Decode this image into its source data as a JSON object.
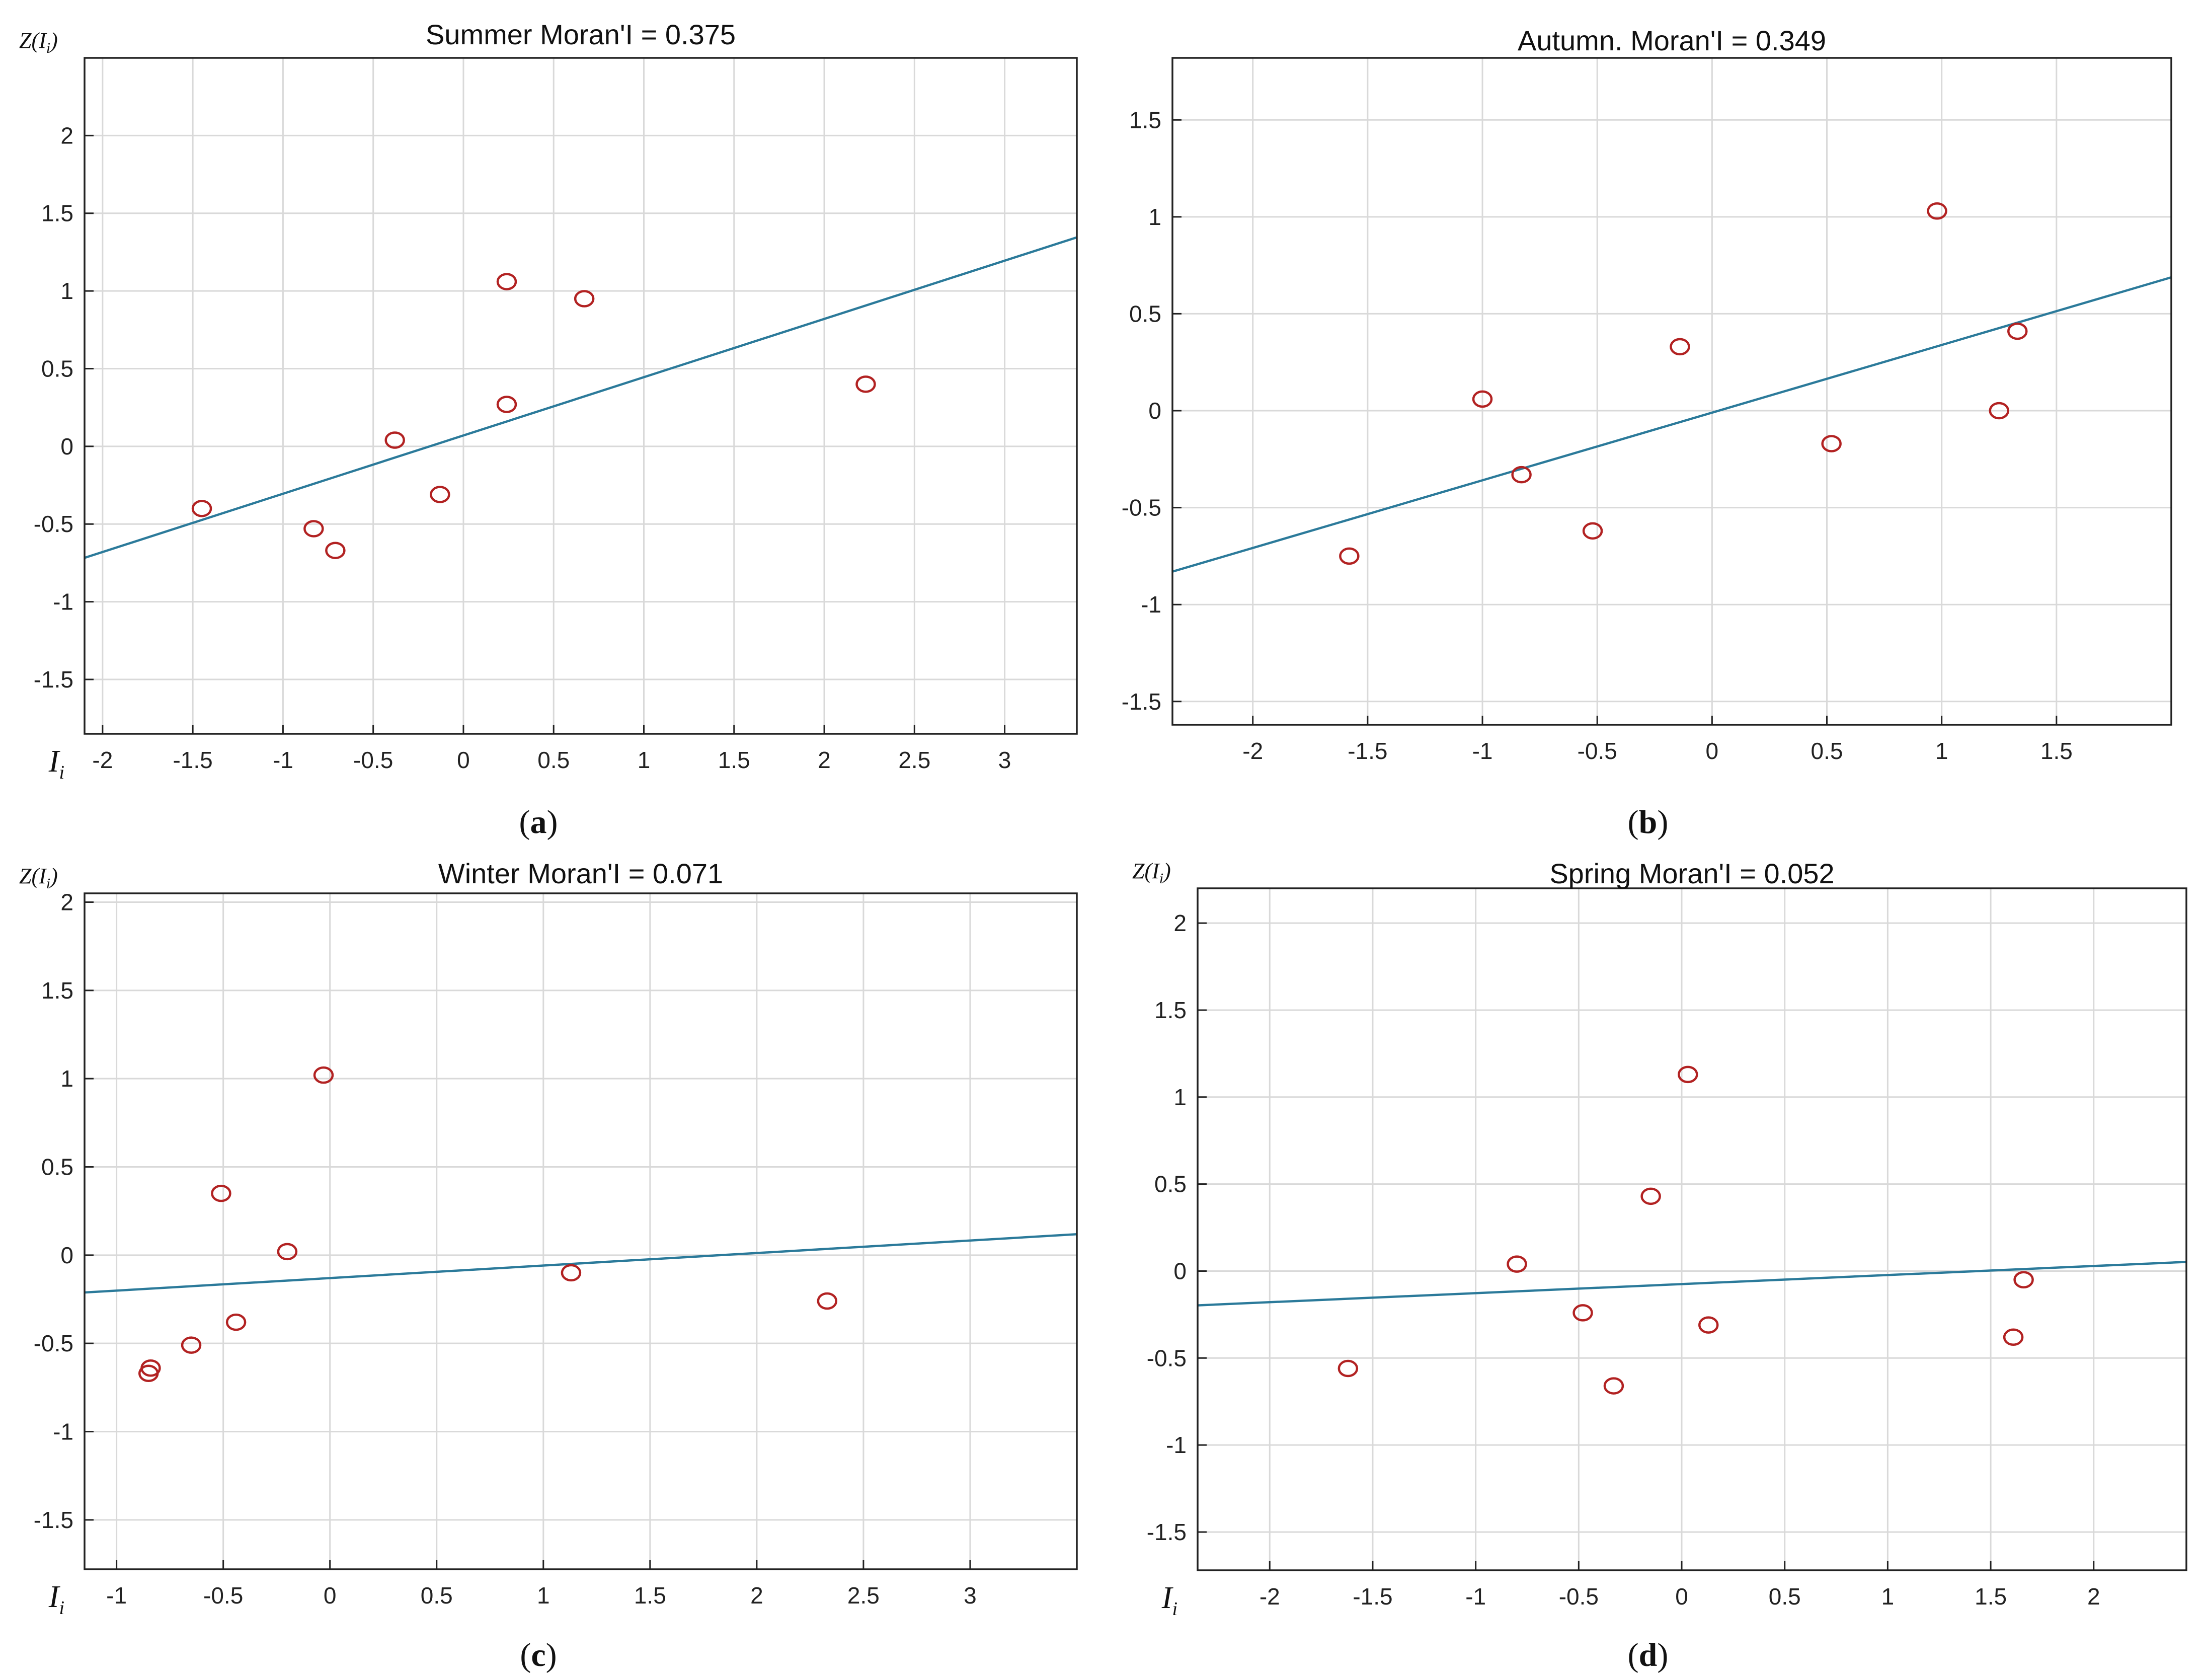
{
  "colors": {
    "line": "#2b7a9a",
    "marker": "#b22222",
    "grid": "#d9d9d9",
    "frame": "#222222"
  },
  "chart_data": [
    {
      "type": "scatter",
      "panel_label": "a",
      "title": "Summer Moran'I = 0.375",
      "ylabel": "Z(I",
      "ylabel_sub": "i",
      "xlabel": "I",
      "xlabel_sub": "i",
      "xlim": [
        -2.1,
        3.4
      ],
      "ylim": [
        -1.85,
        2.5
      ],
      "xticks": [
        -2,
        -1.5,
        -1,
        -0.5,
        0,
        0.5,
        1,
        1.5,
        2,
        2.5,
        3
      ],
      "yticks": [
        -1.5,
        -1,
        -0.5,
        0,
        0.5,
        1,
        1.5,
        2
      ],
      "grid": true,
      "points": [
        {
          "x": -1.45,
          "y": -0.4
        },
        {
          "x": -0.83,
          "y": -0.53
        },
        {
          "x": -0.71,
          "y": -0.67
        },
        {
          "x": -0.38,
          "y": 0.04
        },
        {
          "x": -0.13,
          "y": -0.31
        },
        {
          "x": 0.24,
          "y": 1.06
        },
        {
          "x": 0.24,
          "y": 0.27
        },
        {
          "x": 0.67,
          "y": 0.95
        },
        {
          "x": 2.23,
          "y": 0.4
        }
      ],
      "fit_line": {
        "slope": 0.375,
        "intercept": 0.07
      }
    },
    {
      "type": "scatter",
      "panel_label": "b",
      "title": "Autumn. Moran'I = 0.349",
      "ylabel": "",
      "ylabel_sub": "",
      "xlabel": "",
      "xlabel_sub": "",
      "xlim": [
        -2.35,
        2.0
      ],
      "ylim": [
        -1.62,
        1.82
      ],
      "xticks": [
        -2,
        -1.5,
        -1,
        -0.5,
        0,
        0.5,
        1,
        1.5
      ],
      "yticks": [
        -1.5,
        -1,
        -0.5,
        0,
        0.5,
        1,
        1.5
      ],
      "grid": true,
      "points": [
        {
          "x": -1.58,
          "y": -0.75
        },
        {
          "x": -1.0,
          "y": 0.06
        },
        {
          "x": -0.83,
          "y": -0.33
        },
        {
          "x": -0.52,
          "y": -0.62
        },
        {
          "x": -0.14,
          "y": 0.33
        },
        {
          "x": 0.52,
          "y": -0.17
        },
        {
          "x": 0.98,
          "y": 1.03
        },
        {
          "x": 1.25,
          "y": 0.0
        },
        {
          "x": 1.33,
          "y": 0.41
        }
      ],
      "fit_line": {
        "slope": 0.349,
        "intercept": -0.01
      }
    },
    {
      "type": "scatter",
      "panel_label": "c",
      "title": "Winter Moran'I = 0.071",
      "ylabel": "Z(I",
      "ylabel_sub": "i",
      "xlabel": "I",
      "xlabel_sub": "i",
      "xlim": [
        -1.15,
        3.5
      ],
      "ylim": [
        -1.78,
        2.05
      ],
      "xticks": [
        -1,
        -0.5,
        0,
        0.5,
        1,
        1.5,
        2,
        2.5,
        3
      ],
      "yticks": [
        -1.5,
        -1,
        -0.5,
        0,
        0.5,
        1,
        1.5,
        2
      ],
      "grid": true,
      "points": [
        {
          "x": -0.84,
          "y": -0.64
        },
        {
          "x": -0.85,
          "y": -0.67
        },
        {
          "x": -0.65,
          "y": -0.51
        },
        {
          "x": -0.51,
          "y": 0.35
        },
        {
          "x": -0.44,
          "y": -0.38
        },
        {
          "x": -0.2,
          "y": 0.02
        },
        {
          "x": -0.03,
          "y": 1.02
        },
        {
          "x": 1.13,
          "y": -0.1
        },
        {
          "x": 2.33,
          "y": -0.26
        }
      ],
      "fit_line": {
        "slope": 0.071,
        "intercept": -0.13
      }
    },
    {
      "type": "scatter",
      "panel_label": "d",
      "title": "Spring Moran'I = 0.052",
      "ylabel": "Z(I",
      "ylabel_sub": "i",
      "xlabel": "I",
      "xlabel_sub": "i",
      "xlim": [
        -2.35,
        2.45
      ],
      "ylim": [
        -1.72,
        2.2
      ],
      "xticks": [
        -2,
        -1.5,
        -1,
        -0.5,
        0,
        0.5,
        1,
        1.5,
        2
      ],
      "yticks": [
        -1.5,
        -1,
        -0.5,
        0,
        0.5,
        1,
        1.5,
        2
      ],
      "grid": true,
      "points": [
        {
          "x": -1.62,
          "y": -0.56
        },
        {
          "x": -0.8,
          "y": 0.04
        },
        {
          "x": -0.48,
          "y": -0.24
        },
        {
          "x": -0.33,
          "y": -0.66
        },
        {
          "x": -0.15,
          "y": 0.43
        },
        {
          "x": 0.03,
          "y": 1.13
        },
        {
          "x": 0.13,
          "y": -0.31
        },
        {
          "x": 1.61,
          "y": -0.38
        },
        {
          "x": 1.66,
          "y": -0.05
        }
      ],
      "fit_line": {
        "slope": 0.052,
        "intercept": -0.075
      }
    }
  ]
}
